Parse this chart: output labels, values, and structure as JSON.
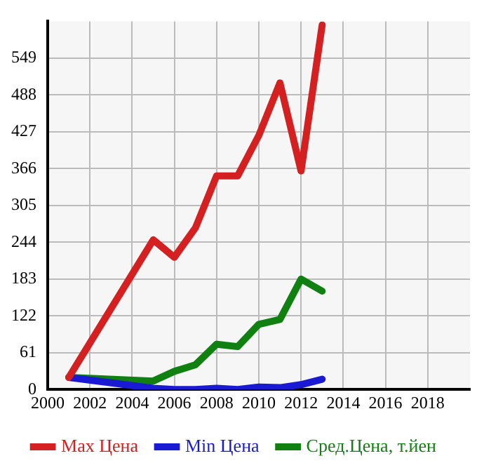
{
  "chart_data": {
    "type": "line",
    "xlim": [
      2000,
      2020
    ],
    "xticks": [
      2000,
      2002,
      2004,
      2006,
      2008,
      2010,
      2012,
      2014,
      2016,
      2018
    ],
    "ylim": [
      0,
      610
    ],
    "yticks": [
      0,
      61,
      122,
      183,
      244,
      305,
      366,
      427,
      488,
      549
    ],
    "grid": true,
    "legend": "bottom",
    "marker": "none",
    "line_style": "solid",
    "series": [
      {
        "name": "Max Цена",
        "color": "#d42020",
        "x": [
          2001,
          2005,
          2006,
          2007,
          2008,
          2009,
          2010,
          2011,
          2012,
          2013
        ],
        "values": [
          20,
          248,
          219,
          268,
          354,
          354,
          421,
          508,
          362,
          604
        ]
      },
      {
        "name": "Min Цена",
        "color": "#1a1ad4",
        "x": [
          2001,
          2005,
          2006,
          2007,
          2008,
          2009,
          2010,
          2011,
          2012,
          2013
        ],
        "values": [
          20,
          2,
          0,
          0,
          2,
          0,
          4,
          3,
          8,
          17
        ]
      },
      {
        "name": "Сред.Цена, т.йен",
        "color": "#108010",
        "x": [
          2001,
          2005,
          2006,
          2007,
          2008,
          2009,
          2010,
          2011,
          2012,
          2013
        ],
        "values": [
          20,
          14,
          30,
          41,
          75,
          71,
          108,
          116,
          183,
          163
        ]
      }
    ]
  }
}
